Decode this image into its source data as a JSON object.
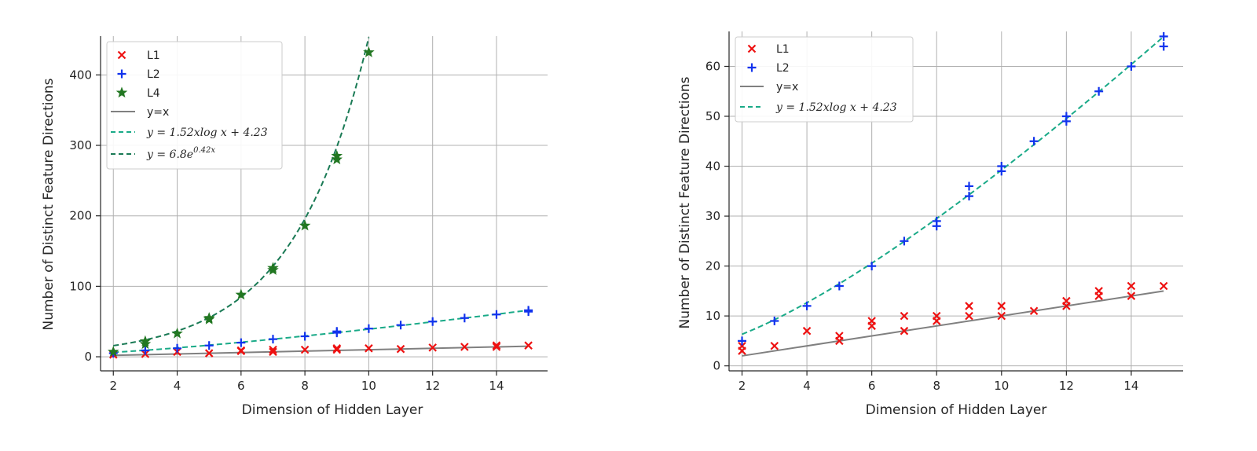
{
  "chart_data": [
    {
      "type": "scatter",
      "xlabel": "Dimension of Hidden Layer",
      "ylabel": "Number of Distinct Feature Directions",
      "xlim": [
        1.6,
        15.6
      ],
      "ylim": [
        -20,
        455
      ],
      "xticks": [
        2,
        4,
        6,
        8,
        10,
        12,
        14
      ],
      "yticks": [
        0,
        100,
        200,
        300,
        400
      ],
      "grid": true,
      "legend_position": "upper-left",
      "colors": {
        "L1": "#ee1111",
        "L2": "#1133ee",
        "L4": "#227722",
        "yx": "#808080",
        "fit_log": "#1aaa88",
        "fit_exp": "#1a7a55"
      },
      "series": [
        {
          "name": "L1",
          "marker": "x",
          "x": [
            2,
            3,
            4,
            5,
            6,
            6,
            7,
            7,
            8,
            9,
            9,
            10,
            11,
            12,
            13,
            14,
            14,
            15
          ],
          "y": [
            3,
            4,
            7,
            5,
            8,
            9,
            7,
            10,
            10,
            10,
            12,
            12,
            11,
            13,
            14,
            14,
            16,
            16
          ]
        },
        {
          "name": "L2",
          "marker": "+",
          "x": [
            2,
            3,
            4,
            5,
            6,
            7,
            8,
            9,
            9,
            10,
            11,
            12,
            13,
            14,
            15,
            15
          ],
          "y": [
            5,
            9,
            12,
            16,
            20,
            25,
            29,
            34,
            36,
            40,
            45,
            50,
            55,
            60,
            64,
            66
          ]
        },
        {
          "name": "L4",
          "marker": "star",
          "x": [
            2,
            3,
            3,
            4,
            5,
            5,
            6,
            7,
            7,
            8,
            9,
            9,
            10
          ],
          "y": [
            7,
            18,
            22,
            33,
            53,
            55,
            88,
            123,
            126,
            186,
            280,
            285,
            432
          ]
        },
        {
          "name": "y=x",
          "type": "line",
          "style": "solid",
          "x": [
            2,
            15
          ],
          "y": [
            2,
            15
          ]
        },
        {
          "name": "y = 1.52xlog x + 4.23",
          "type": "line",
          "style": "dashed",
          "formula": "1.52*x*log(x)+4.23",
          "x_range": [
            2,
            15
          ]
        },
        {
          "name": "y = 6.8e^0.42x",
          "type": "line",
          "style": "dashed",
          "formula": "6.8*exp(0.42*x)",
          "x_range": [
            2,
            10
          ]
        }
      ],
      "legend": {
        "L1": "L1",
        "L2": "L2",
        "L4": "L4",
        "yx": "y=x",
        "fit_log": "y = 1.52xlog x + 4.23",
        "fit_exp_base": "y = 6.8e",
        "fit_exp_power": "0.42x"
      }
    },
    {
      "type": "scatter",
      "xlabel": "Dimension of Hidden Layer",
      "ylabel": "Number of Distinct Feature Directions",
      "xlim": [
        1.6,
        15.6
      ],
      "ylim": [
        -1,
        67
      ],
      "xticks": [
        2,
        4,
        6,
        8,
        10,
        12,
        14
      ],
      "yticks": [
        0,
        10,
        20,
        30,
        40,
        50,
        60
      ],
      "grid": true,
      "legend_position": "upper-left",
      "colors": {
        "L1": "#ee1111",
        "L2": "#1133ee",
        "yx": "#808080",
        "fit_log": "#1aaa88"
      },
      "series": [
        {
          "name": "L1",
          "marker": "x",
          "x": [
            2,
            2,
            3,
            4,
            5,
            5,
            6,
            6,
            7,
            7,
            8,
            8,
            9,
            9,
            10,
            10,
            11,
            12,
            12,
            13,
            13,
            14,
            14,
            15
          ],
          "y": [
            3,
            4,
            4,
            7,
            5,
            6,
            8,
            9,
            7,
            10,
            9,
            10,
            10,
            12,
            10,
            12,
            11,
            12,
            13,
            14,
            15,
            14,
            16,
            16
          ]
        },
        {
          "name": "L2",
          "marker": "+",
          "x": [
            2,
            3,
            4,
            5,
            6,
            7,
            8,
            8,
            9,
            9,
            10,
            10,
            11,
            12,
            12,
            13,
            14,
            15,
            15
          ],
          "y": [
            5,
            9,
            12,
            16,
            20,
            25,
            28,
            29,
            34,
            36,
            39,
            40,
            45,
            49,
            50,
            55,
            60,
            64,
            66
          ]
        },
        {
          "name": "y=x",
          "type": "line",
          "style": "solid",
          "x": [
            2,
            15
          ],
          "y": [
            2,
            15
          ]
        },
        {
          "name": "y = 1.52xlog x + 4.23",
          "type": "line",
          "style": "dashed",
          "formula": "1.52*x*log(x)+4.23",
          "x_range": [
            2,
            15
          ]
        }
      ],
      "legend": {
        "L1": "L1",
        "L2": "L2",
        "yx": "y=x",
        "fit_log": "y = 1.52xlog x + 4.23"
      }
    }
  ]
}
